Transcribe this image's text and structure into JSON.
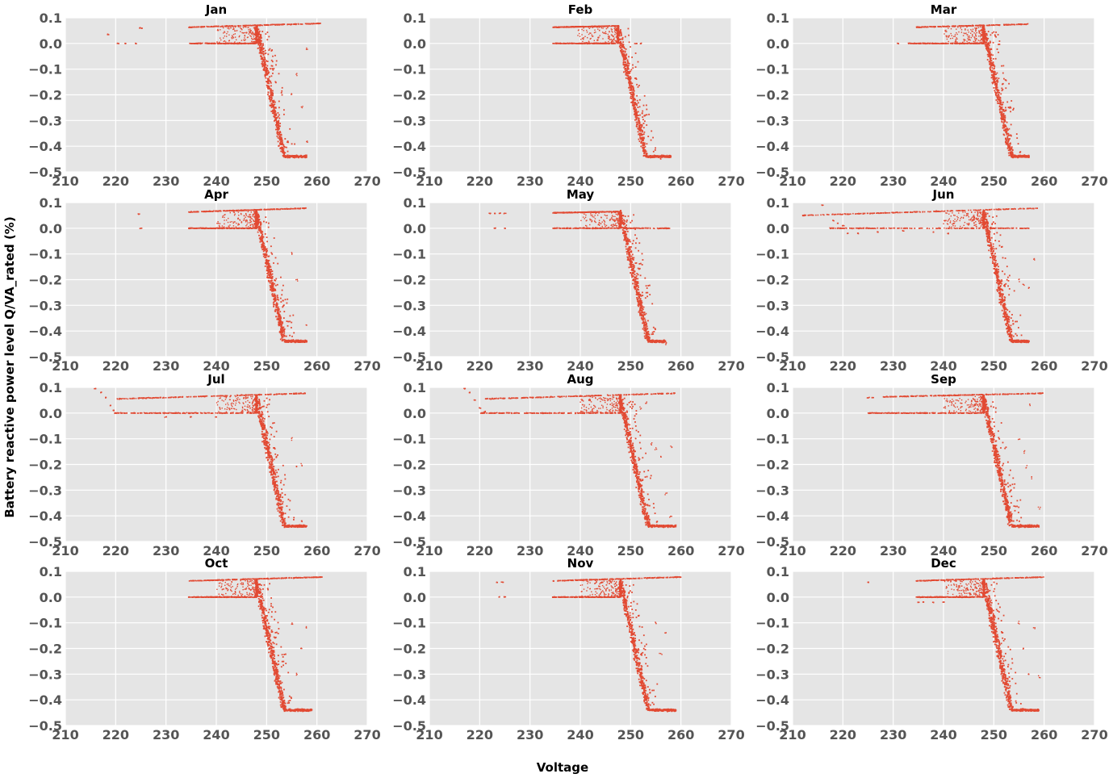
{
  "chart_data": {
    "type": "scatter",
    "xlabel": "Voltage",
    "ylabel": "Battery reactive power level Q/VA_rated (%)",
    "xlim": [
      210,
      270
    ],
    "ylim": [
      -0.5,
      0.1
    ],
    "xticks": [
      "210",
      "220",
      "230",
      "240",
      "250",
      "260",
      "270"
    ],
    "yticks": [
      "0.1",
      "0.0",
      "−0.1",
      "−0.2",
      "−0.3",
      "−0.4",
      "−0.5"
    ],
    "grid": true,
    "marker_color": "#e24a33",
    "background_color": "#e5e5e5",
    "panels": [
      {
        "title": "Jan",
        "upper_band": {
          "x0": 234.5,
          "x1": 261,
          "y0": 0.063,
          "y1": 0.078
        },
        "zero_band": {
          "x0": 234.5,
          "x1": 248
        },
        "knee": {
          "v": 248,
          "y": 0.06
        },
        "bottom": {
          "v": 253.5,
          "x1": 258,
          "y": -0.44
        },
        "isolated": [
          [
            218.5,
            0.035
          ],
          [
            220.5,
            0.0
          ],
          [
            222,
            0.0
          ],
          [
            224,
            0.0
          ],
          [
            224.8,
            0.06
          ],
          [
            225.2,
            0.058
          ]
        ],
        "outliers": [
          [
            255,
            -0.2
          ],
          [
            256,
            -0.12
          ],
          [
            257,
            -0.25
          ],
          [
            258,
            -0.02
          ],
          [
            258,
            -0.38
          ]
        ]
      },
      {
        "title": "Feb",
        "upper_band": {
          "x0": 234.5,
          "x1": 247.5,
          "y0": 0.063,
          "y1": 0.068
        },
        "zero_band": {
          "x0": 234.5,
          "x1": 247
        },
        "knee": {
          "v": 247.5,
          "y": 0.06
        },
        "bottom": {
          "v": 253,
          "x1": 258,
          "y": -0.44
        },
        "isolated": [
          [
            251,
            0.0
          ],
          [
            252,
            0.0
          ]
        ],
        "outliers": [
          [
            255,
            -0.44
          ],
          [
            256,
            -0.45
          ]
        ]
      },
      {
        "title": "Mar",
        "upper_band": {
          "x0": 234.5,
          "x1": 257,
          "y0": 0.063,
          "y1": 0.075
        },
        "zero_band": {
          "x0": 233,
          "x1": 248
        },
        "knee": {
          "v": 248,
          "y": 0.06
        },
        "bottom": {
          "v": 253.5,
          "x1": 257,
          "y": -0.44
        },
        "isolated": [
          [
            231,
            0.0
          ]
        ],
        "outliers": []
      },
      {
        "title": "Apr",
        "upper_band": {
          "x0": 234.5,
          "x1": 258,
          "y0": 0.063,
          "y1": 0.078
        },
        "zero_band": {
          "x0": 234.5,
          "x1": 248
        },
        "knee": {
          "v": 248,
          "y": 0.06
        },
        "bottom": {
          "v": 253.5,
          "x1": 258,
          "y": -0.44
        },
        "isolated": [
          [
            224.5,
            0.055
          ],
          [
            225,
            0.0
          ]
        ],
        "outliers": [
          [
            255,
            -0.1
          ],
          [
            256,
            -0.2
          ],
          [
            258,
            -0.38
          ]
        ]
      },
      {
        "title": "May",
        "upper_band": {
          "x0": 234.5,
          "x1": 248,
          "y0": 0.06,
          "y1": 0.065
        },
        "zero_band": {
          "x0": 234.5,
          "x1": 258
        },
        "knee": {
          "v": 248,
          "y": 0.06
        },
        "bottom": {
          "v": 253.5,
          "x1": 257,
          "y": -0.44
        },
        "isolated": [
          [
            222,
            0.058
          ],
          [
            223,
            0.058
          ],
          [
            224,
            0.058
          ],
          [
            225,
            0.058
          ],
          [
            223,
            0.0
          ],
          [
            225,
            0.0
          ]
        ],
        "outliers": [
          [
            257,
            -0.45
          ]
        ]
      },
      {
        "title": "Jun",
        "upper_band": {
          "x0": 212,
          "x1": 259,
          "y0": 0.05,
          "y1": 0.078
        },
        "zero_band": {
          "x0": 217,
          "x1": 258
        },
        "knee": {
          "v": 248,
          "y": 0.06
        },
        "bottom": {
          "v": 253.5,
          "x1": 257,
          "y": -0.44
        },
        "isolated": [
          [
            216,
            0.09
          ],
          [
            218,
            0.03
          ],
          [
            219,
            0.02
          ],
          [
            220,
            0.01
          ],
          [
            221,
            -0.02
          ],
          [
            223,
            -0.02
          ],
          [
            227,
            -0.015
          ],
          [
            232,
            -0.01
          ],
          [
            238,
            -0.015
          ],
          [
            241,
            -0.02
          ]
        ],
        "outliers": [
          [
            255,
            -0.2
          ],
          [
            256,
            -0.22
          ],
          [
            257,
            -0.23
          ],
          [
            258,
            -0.12
          ]
        ]
      },
      {
        "title": "Jul",
        "upper_band": {
          "x0": 220,
          "x1": 258,
          "y0": 0.055,
          "y1": 0.077
        },
        "zero_band": {
          "x0": 219.5,
          "x1": 248
        },
        "knee": {
          "v": 248,
          "y": 0.06
        },
        "bottom": {
          "v": 253.5,
          "x1": 258,
          "y": -0.44
        },
        "isolated": [
          [
            216,
            0.095
          ],
          [
            217,
            0.08
          ],
          [
            218,
            0.06
          ],
          [
            219,
            0.03
          ],
          [
            219.5,
            0.01
          ],
          [
            230,
            -0.015
          ],
          [
            235,
            -0.015
          ],
          [
            240,
            -0.015
          ]
        ],
        "outliers": [
          [
            255,
            -0.1
          ],
          [
            256,
            -0.21
          ],
          [
            257,
            -0.2
          ],
          [
            257,
            -0.42
          ]
        ]
      },
      {
        "title": "Aug",
        "upper_band": {
          "x0": 221,
          "x1": 259,
          "y0": 0.055,
          "y1": 0.077
        },
        "zero_band": {
          "x0": 220,
          "x1": 248
        },
        "knee": {
          "v": 248,
          "y": 0.06
        },
        "bottom": {
          "v": 253.5,
          "x1": 259,
          "y": -0.44
        },
        "isolated": [
          [
            217,
            0.095
          ],
          [
            218,
            0.08
          ],
          [
            219,
            0.05
          ],
          [
            220,
            0.02
          ],
          [
            221,
            0.005
          ]
        ],
        "outliers": [
          [
            251,
            -0.1
          ],
          [
            252,
            0.02
          ],
          [
            253,
            0.04
          ],
          [
            254,
            -0.12
          ],
          [
            255,
            -0.14
          ],
          [
            256,
            -0.17
          ],
          [
            257,
            -0.31
          ],
          [
            258,
            -0.13
          ],
          [
            258,
            -0.4
          ]
        ]
      },
      {
        "title": "Sep",
        "upper_band": {
          "x0": 228,
          "x1": 260,
          "y0": 0.063,
          "y1": 0.077
        },
        "zero_band": {
          "x0": 225,
          "x1": 248
        },
        "knee": {
          "v": 248,
          "y": 0.06
        },
        "bottom": {
          "v": 253.5,
          "x1": 259,
          "y": -0.44
        },
        "isolated": [
          [
            225,
            0.06
          ],
          [
            226,
            0.06
          ]
        ],
        "outliers": [
          [
            255,
            -0.1
          ],
          [
            256,
            -0.15
          ],
          [
            256.5,
            -0.21
          ],
          [
            257,
            0.03
          ],
          [
            257.5,
            -0.25
          ],
          [
            259,
            -0.37
          ]
        ]
      },
      {
        "title": "Oct",
        "upper_band": {
          "x0": 234.5,
          "x1": 261,
          "y0": 0.063,
          "y1": 0.078
        },
        "zero_band": {
          "x0": 234.5,
          "x1": 248
        },
        "knee": {
          "v": 248,
          "y": 0.06
        },
        "bottom": {
          "v": 253.5,
          "x1": 259,
          "y": -0.44
        },
        "isolated": [],
        "outliers": [
          [
            255,
            -0.1
          ],
          [
            256,
            -0.3
          ],
          [
            257,
            -0.2
          ],
          [
            258,
            -0.12
          ]
        ]
      },
      {
        "title": "Nov",
        "upper_band": {
          "x0": 234.5,
          "x1": 260,
          "y0": 0.063,
          "y1": 0.078
        },
        "zero_band": {
          "x0": 234.5,
          "x1": 248
        },
        "knee": {
          "v": 248,
          "y": 0.06
        },
        "bottom": {
          "v": 253.5,
          "x1": 259,
          "y": -0.44
        },
        "isolated": [
          [
            223.5,
            0.058
          ],
          [
            224.5,
            0.058
          ],
          [
            225,
            0.0
          ],
          [
            224,
            0.0
          ]
        ],
        "outliers": [
          [
            255,
            -0.1
          ],
          [
            256,
            -0.22
          ],
          [
            257,
            -0.14
          ]
        ]
      },
      {
        "title": "Dec",
        "upper_band": {
          "x0": 234.5,
          "x1": 260,
          "y0": 0.063,
          "y1": 0.078
        },
        "zero_band": {
          "x0": 234.5,
          "x1": 248
        },
        "knee": {
          "v": 248,
          "y": 0.06
        },
        "bottom": {
          "v": 253.5,
          "x1": 259,
          "y": -0.44
        },
        "isolated": [
          [
            225,
            0.058
          ],
          [
            235,
            -0.02
          ],
          [
            236,
            -0.02
          ],
          [
            238,
            -0.02
          ],
          [
            240,
            -0.02
          ]
        ],
        "outliers": [
          [
            255,
            -0.1
          ],
          [
            256,
            -0.2
          ],
          [
            257,
            -0.3
          ],
          [
            258,
            -0.12
          ],
          [
            259,
            -0.31
          ]
        ]
      }
    ]
  }
}
